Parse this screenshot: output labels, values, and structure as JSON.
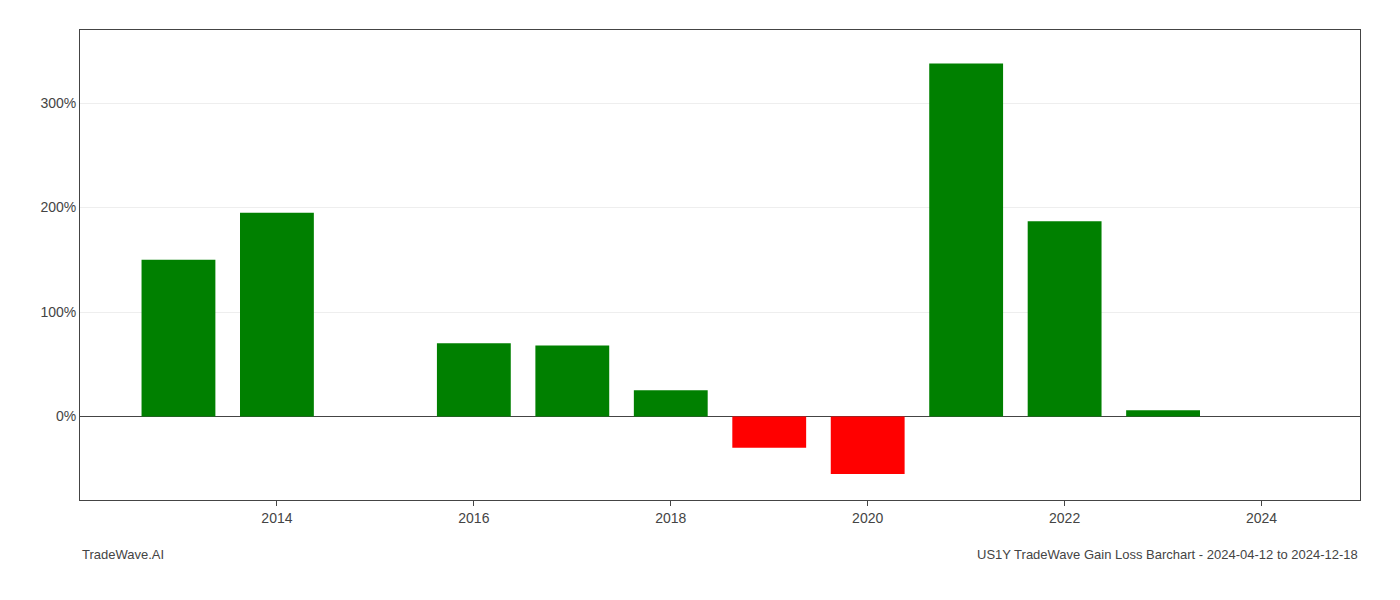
{
  "chart_data": {
    "type": "bar",
    "title": "US1Y TradeWave Gain Loss Barchart - 2024-04-12 to 2024-12-18",
    "annotations": [
      "TradeWave.AI"
    ],
    "x": [
      2013,
      2014,
      2016,
      2017,
      2018,
      2019,
      2020,
      2021,
      2022,
      2023
    ],
    "values": [
      150,
      195,
      70,
      68,
      25,
      -30,
      -55,
      338,
      187,
      6
    ],
    "colors": [
      "#008000",
      "#008000",
      "#008000",
      "#008000",
      "#008000",
      "#ff0000",
      "#ff0000",
      "#008000",
      "#008000",
      "#008000"
    ],
    "xlim": [
      2012.0,
      2025.0
    ],
    "xticks": [
      2014,
      2016,
      2018,
      2020,
      2022,
      2024
    ],
    "ylim": [
      -80,
      370
    ],
    "yticks": [
      {
        "value": 0,
        "label": "0%"
      },
      {
        "value": 100,
        "label": "100%"
      },
      {
        "value": 200,
        "label": "200%"
      },
      {
        "value": 300,
        "label": "300%"
      }
    ],
    "grid": "y"
  }
}
